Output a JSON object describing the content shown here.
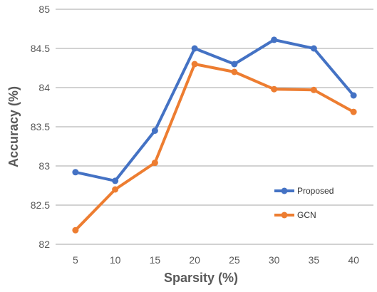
{
  "chart_data": {
    "type": "line",
    "title": "",
    "xlabel": "Sparsity (%)",
    "ylabel": "Accuracy (%)",
    "x": [
      5,
      10,
      15,
      20,
      25,
      30,
      35,
      40
    ],
    "x_tick_labels": [
      "5",
      "10",
      "15",
      "20",
      "25",
      "30",
      "35",
      "40"
    ],
    "ylim": [
      82,
      85
    ],
    "y_ticks": [
      82,
      82.5,
      83,
      83.5,
      84,
      84.5,
      85
    ],
    "y_tick_labels": [
      "82",
      "82.5",
      "83",
      "83.5",
      "84",
      "84.5",
      "85"
    ],
    "grid": "horizontal",
    "legend_position": "lower-right",
    "series": [
      {
        "name": "Proposed",
        "color": "#4472C4",
        "values": [
          82.92,
          82.81,
          83.45,
          84.5,
          84.3,
          84.61,
          84.5,
          83.9
        ]
      },
      {
        "name": "GCN",
        "color": "#ED7D31",
        "values": [
          82.18,
          82.7,
          83.04,
          84.3,
          84.2,
          83.98,
          83.97,
          83.69
        ]
      }
    ]
  }
}
